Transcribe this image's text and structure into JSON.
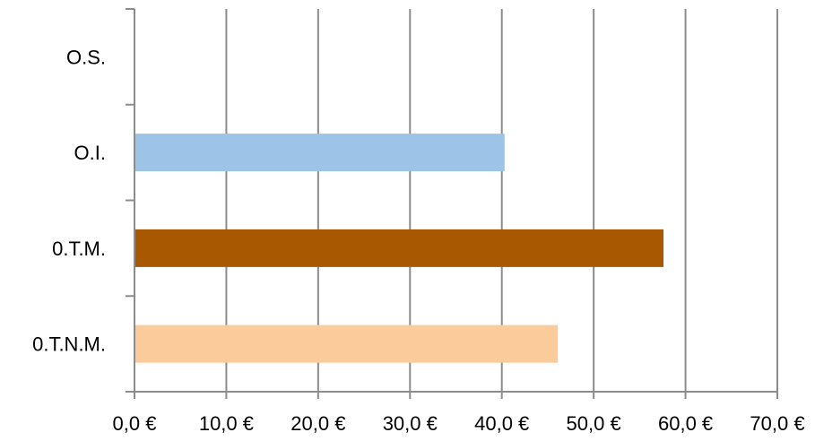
{
  "chart_data": {
    "type": "bar",
    "orientation": "horizontal",
    "categories": [
      "O.S.",
      "O.I.",
      "0.T.M.",
      "0.T.N.M."
    ],
    "values": [
      0,
      40.3,
      57.6,
      46.1
    ],
    "colors": [
      "#9DC3E6",
      "#9DC3E6",
      "#A85800",
      "#FBCB9C"
    ],
    "xlim": [
      0,
      70
    ],
    "xticks": [
      "0,0 €",
      "10,0 €",
      "20,0 €",
      "30,0 €",
      "40,0 €",
      "50,0 €",
      "60,0 €",
      "70,0 €"
    ],
    "grid": "vertical",
    "gridColor": "#8c8c8c",
    "legend": "none"
  }
}
